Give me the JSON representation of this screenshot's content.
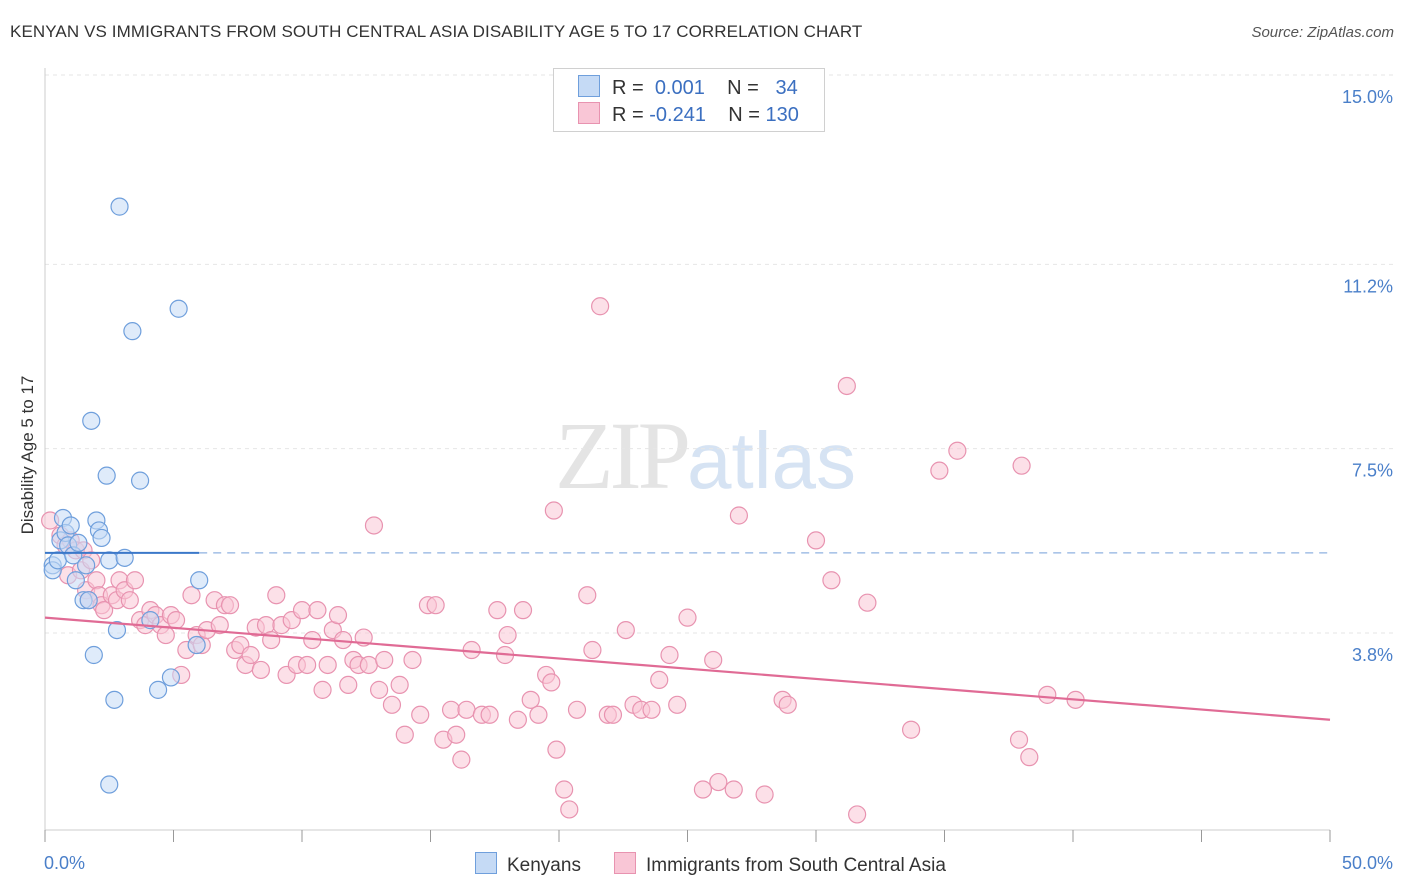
{
  "title": "KENYAN VS IMMIGRANTS FROM SOUTH CENTRAL ASIA DISABILITY AGE 5 TO 17 CORRELATION CHART",
  "source": "Source: ZipAtlas.com",
  "watermark": {
    "zip": "ZIP",
    "atlas": "atlas"
  },
  "legend": {
    "r_label": "R =",
    "n_label": "N =",
    "series": [
      {
        "name": "Kenyans",
        "r": "0.001",
        "n": "34",
        "fill": "#c5daf5",
        "stroke": "#6f9fdc"
      },
      {
        "name": "Immigrants from South Central Asia",
        "r": "-0.241",
        "n": "130",
        "fill": "#f9c6d6",
        "stroke": "#e893b0"
      }
    ]
  },
  "chart_data": {
    "type": "scatter",
    "title": "KENYAN VS IMMIGRANTS FROM SOUTH CENTRAL ASIA DISABILITY AGE 5 TO 17 CORRELATION CHART",
    "xlabel": "",
    "ylabel": "Disability Age 5 to 17",
    "xlim": [
      0,
      50
    ],
    "ylim": [
      0,
      15.5
    ],
    "x_tick_labels": [
      "0.0%",
      "50.0%"
    ],
    "y_ticks": [
      3.8,
      7.5,
      11.2,
      15.0
    ],
    "y_tick_labels": [
      "3.8%",
      "7.5%",
      "11.2%",
      "15.0%"
    ],
    "grid": true,
    "series": [
      {
        "name": "Kenyans",
        "color": "#6f9fdc",
        "fill": "#c5daf5",
        "trend": {
          "x": [
            0,
            6.0
          ],
          "y": [
            5.85,
            5.85
          ],
          "extend_dashed_to": 50
        },
        "points": [
          [
            0.3,
            5.6
          ],
          [
            0.3,
            5.5
          ],
          [
            0.5,
            5.7
          ],
          [
            0.6,
            6.1
          ],
          [
            0.7,
            6.55
          ],
          [
            0.8,
            6.25
          ],
          [
            0.9,
            6.0
          ],
          [
            1.0,
            6.4
          ],
          [
            1.1,
            5.8
          ],
          [
            1.2,
            5.3
          ],
          [
            1.3,
            6.05
          ],
          [
            1.5,
            4.9
          ],
          [
            1.6,
            5.6
          ],
          [
            1.7,
            4.9
          ],
          [
            1.8,
            8.5
          ],
          [
            2.0,
            6.5
          ],
          [
            2.1,
            6.3
          ],
          [
            2.2,
            6.15
          ],
          [
            2.4,
            7.4
          ],
          [
            2.5,
            5.7
          ],
          [
            2.8,
            4.3
          ],
          [
            3.1,
            5.75
          ],
          [
            3.4,
            10.3
          ],
          [
            3.7,
            7.3
          ],
          [
            4.1,
            4.5
          ],
          [
            4.4,
            3.1
          ],
          [
            4.9,
            3.35
          ],
          [
            5.2,
            10.75
          ],
          [
            5.9,
            4.0
          ],
          [
            6.0,
            5.3
          ],
          [
            1.9,
            3.8
          ],
          [
            2.7,
            2.9
          ],
          [
            2.5,
            1.2
          ],
          [
            2.9,
            12.8
          ]
        ]
      },
      {
        "name": "Immigrants from South Central Asia",
        "color": "#e893b0",
        "fill": "#f9c6d6",
        "trend": {
          "x": [
            0,
            50
          ],
          "y": [
            4.55,
            2.5
          ]
        },
        "points": [
          [
            0.2,
            6.5
          ],
          [
            0.6,
            6.2
          ],
          [
            0.8,
            6.0
          ],
          [
            0.9,
            5.4
          ],
          [
            1.0,
            6.1
          ],
          [
            1.2,
            5.9
          ],
          [
            1.4,
            5.5
          ],
          [
            1.5,
            5.9
          ],
          [
            1.6,
            5.1
          ],
          [
            1.7,
            4.9
          ],
          [
            1.8,
            5.7
          ],
          [
            2.0,
            5.3
          ],
          [
            2.1,
            5.0
          ],
          [
            2.2,
            4.8
          ],
          [
            2.3,
            4.7
          ],
          [
            2.6,
            5.0
          ],
          [
            2.8,
            4.9
          ],
          [
            2.9,
            5.3
          ],
          [
            3.1,
            5.1
          ],
          [
            3.3,
            4.9
          ],
          [
            3.5,
            5.3
          ],
          [
            3.7,
            4.5
          ],
          [
            3.9,
            4.4
          ],
          [
            4.1,
            4.7
          ],
          [
            4.3,
            4.6
          ],
          [
            4.5,
            4.4
          ],
          [
            4.7,
            4.2
          ],
          [
            4.9,
            4.6
          ],
          [
            5.1,
            4.5
          ],
          [
            5.3,
            3.4
          ],
          [
            5.5,
            3.9
          ],
          [
            5.7,
            5.0
          ],
          [
            5.9,
            4.2
          ],
          [
            6.1,
            4.0
          ],
          [
            6.3,
            4.3
          ],
          [
            6.6,
            4.9
          ],
          [
            6.8,
            4.4
          ],
          [
            7.0,
            4.8
          ],
          [
            7.2,
            4.8
          ],
          [
            7.4,
            3.9
          ],
          [
            7.6,
            4.0
          ],
          [
            7.8,
            3.6
          ],
          [
            8.0,
            3.8
          ],
          [
            8.2,
            4.35
          ],
          [
            8.4,
            3.5
          ],
          [
            8.6,
            4.4
          ],
          [
            8.8,
            4.1
          ],
          [
            9.0,
            5.0
          ],
          [
            9.2,
            4.4
          ],
          [
            9.4,
            3.4
          ],
          [
            9.6,
            4.5
          ],
          [
            9.8,
            3.6
          ],
          [
            10.0,
            4.7
          ],
          [
            10.2,
            3.6
          ],
          [
            10.4,
            4.1
          ],
          [
            10.6,
            4.7
          ],
          [
            10.8,
            3.1
          ],
          [
            11.0,
            3.6
          ],
          [
            11.2,
            4.3
          ],
          [
            11.4,
            4.6
          ],
          [
            11.6,
            4.1
          ],
          [
            11.8,
            3.2
          ],
          [
            12.0,
            3.7
          ],
          [
            12.2,
            3.6
          ],
          [
            12.4,
            4.15
          ],
          [
            12.6,
            3.6
          ],
          [
            12.8,
            6.4
          ],
          [
            13.0,
            3.1
          ],
          [
            13.2,
            3.7
          ],
          [
            13.5,
            2.8
          ],
          [
            13.8,
            3.2
          ],
          [
            14.0,
            2.2
          ],
          [
            14.3,
            3.7
          ],
          [
            14.6,
            2.6
          ],
          [
            14.9,
            4.8
          ],
          [
            15.2,
            4.8
          ],
          [
            15.5,
            2.1
          ],
          [
            15.8,
            2.7
          ],
          [
            16.0,
            2.2
          ],
          [
            16.2,
            1.7
          ],
          [
            16.4,
            2.7
          ],
          [
            16.6,
            3.9
          ],
          [
            17.0,
            2.6
          ],
          [
            17.3,
            2.6
          ],
          [
            17.6,
            4.7
          ],
          [
            17.9,
            3.8
          ],
          [
            18.0,
            4.2
          ],
          [
            18.4,
            2.5
          ],
          [
            18.6,
            4.7
          ],
          [
            18.9,
            2.9
          ],
          [
            19.2,
            2.6
          ],
          [
            19.5,
            3.4
          ],
          [
            19.7,
            3.25
          ],
          [
            19.8,
            6.7
          ],
          [
            19.9,
            1.9
          ],
          [
            20.2,
            1.1
          ],
          [
            20.4,
            0.7
          ],
          [
            20.7,
            2.7
          ],
          [
            21.1,
            5.0
          ],
          [
            21.3,
            3.9
          ],
          [
            21.6,
            10.8
          ],
          [
            21.9,
            2.6
          ],
          [
            22.1,
            2.6
          ],
          [
            22.6,
            4.3
          ],
          [
            22.9,
            2.8
          ],
          [
            23.2,
            2.7
          ],
          [
            23.6,
            2.7
          ],
          [
            23.9,
            3.3
          ],
          [
            24.3,
            3.8
          ],
          [
            24.6,
            2.8
          ],
          [
            25.0,
            4.55
          ],
          [
            25.6,
            1.1
          ],
          [
            26.0,
            3.7
          ],
          [
            26.2,
            1.25
          ],
          [
            26.8,
            1.1
          ],
          [
            27.0,
            6.6
          ],
          [
            28.0,
            1.0
          ],
          [
            28.7,
            2.9
          ],
          [
            28.9,
            2.8
          ],
          [
            30.0,
            6.1
          ],
          [
            30.6,
            5.3
          ],
          [
            31.2,
            9.2
          ],
          [
            31.6,
            0.6
          ],
          [
            32.0,
            4.85
          ],
          [
            33.7,
            2.3
          ],
          [
            34.8,
            7.5
          ],
          [
            35.5,
            7.9
          ],
          [
            37.9,
            2.1
          ],
          [
            38.0,
            7.6
          ],
          [
            38.3,
            1.75
          ],
          [
            39.0,
            3.0
          ],
          [
            40.1,
            2.9
          ]
        ]
      }
    ]
  }
}
